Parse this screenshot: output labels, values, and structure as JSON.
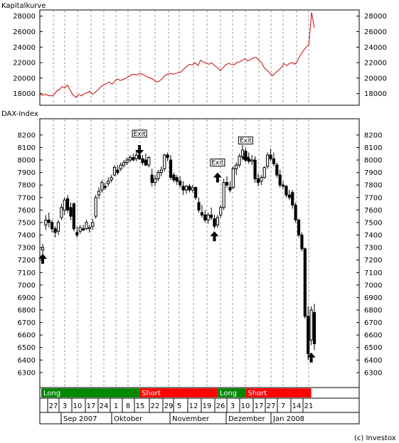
{
  "top_panel": {
    "title": "Kapitalkurve"
  },
  "bottom_panel": {
    "title": "DAX-Index"
  },
  "credit": "(c) Investox",
  "colors": {
    "equity": "#cc0000",
    "long": "#008800",
    "short": "#ff0000",
    "grid": "#999999",
    "candle": "#000000"
  },
  "chart_data": [
    {
      "type": "line",
      "title": "Kapitalkurve",
      "ylim": [
        16500,
        28800
      ],
      "y_ticks": [
        18000,
        20000,
        22000,
        24000,
        26000,
        28000
      ],
      "x": [
        0,
        1,
        2,
        3,
        4,
        5,
        6,
        7,
        8,
        9,
        10,
        11,
        12,
        13,
        14,
        15,
        16,
        17,
        18,
        19,
        20,
        21,
        22,
        23,
        24,
        25,
        26,
        27,
        28,
        29,
        30,
        31,
        32,
        33,
        34,
        35,
        36,
        37,
        38,
        39,
        40,
        41,
        42,
        43,
        44,
        45,
        46,
        47,
        48,
        49,
        50,
        51,
        52,
        53,
        54,
        55,
        56,
        57,
        58,
        59,
        60,
        61,
        62,
        63,
        64,
        65,
        66,
        67,
        68,
        69,
        70,
        71,
        72,
        73,
        74,
        75,
        76,
        77,
        78,
        79,
        80,
        81,
        82,
        83,
        84,
        85,
        86,
        87,
        88,
        89,
        90,
        91,
        92,
        93,
        94,
        95,
        96,
        97,
        98,
        99
      ],
      "series": [
        {
          "values": [
            17900,
            17800,
            17900,
            17750,
            17700,
            17800,
            18300,
            18500,
            18900,
            18800,
            19100,
            18400,
            17800,
            17500,
            17900,
            17700,
            18000,
            18100,
            18300,
            17900,
            18200,
            18500,
            18900,
            19100,
            19300,
            19500,
            19200,
            19600,
            19900,
            19700,
            19800,
            20000,
            20200,
            20400,
            20500,
            20400,
            20600,
            20500,
            20300,
            20100,
            20000,
            19800,
            19500,
            19600,
            19900,
            20300,
            20500,
            20600,
            20500,
            20600,
            20700,
            20800,
            21200,
            21500,
            21800,
            21700,
            22000,
            21600,
            22300,
            22100,
            21900,
            21800,
            22000,
            21600,
            21400,
            21000,
            21300,
            21700,
            21900,
            21800,
            21700,
            22000,
            22100,
            22300,
            22500,
            22200,
            22400,
            22600,
            22700,
            22300,
            22000,
            21300,
            21000,
            20600,
            20300,
            20700,
            21000,
            21300,
            21900,
            21600,
            21900,
            22000,
            21800,
            22300,
            23000,
            23500,
            24000,
            24300,
            28500,
            26500
          ]
        }
      ]
    },
    {
      "type": "candlestick",
      "title": "DAX-Index",
      "ylim": [
        6180,
        8330
      ],
      "y_ticks": [
        6300,
        6400,
        6500,
        6600,
        6700,
        6800,
        6900,
        7000,
        7100,
        7200,
        7300,
        7400,
        7500,
        7600,
        7700,
        7800,
        7900,
        8000,
        8100,
        8200
      ],
      "x_day_ticks": [
        "27",
        "3",
        "10",
        "17",
        "24",
        "1",
        "8",
        "15",
        "22",
        "29",
        "5",
        "12",
        "19",
        "26",
        "3",
        "10",
        "17",
        "27",
        "7",
        "14",
        "21"
      ],
      "x_month_labels": [
        "Sep 2007",
        "Oktober",
        "November",
        "Dezember",
        "Jan 2008"
      ],
      "candles": [
        {
          "o": 7280,
          "h": 7330,
          "l": 7240,
          "c": 7300
        },
        {
          "o": 7480,
          "h": 7560,
          "l": 7440,
          "c": 7520
        },
        {
          "o": 7520,
          "h": 7580,
          "l": 7460,
          "c": 7500
        },
        {
          "o": 7500,
          "h": 7520,
          "l": 7420,
          "c": 7450
        },
        {
          "o": 7450,
          "h": 7470,
          "l": 7380,
          "c": 7420
        },
        {
          "o": 7430,
          "h": 7520,
          "l": 7400,
          "c": 7500
        },
        {
          "o": 7540,
          "h": 7650,
          "l": 7520,
          "c": 7620
        },
        {
          "o": 7600,
          "h": 7700,
          "l": 7560,
          "c": 7680
        },
        {
          "o": 7690,
          "h": 7720,
          "l": 7580,
          "c": 7600
        },
        {
          "o": 7620,
          "h": 7660,
          "l": 7520,
          "c": 7550
        },
        {
          "o": 7650,
          "h": 7660,
          "l": 7430,
          "c": 7450
        },
        {
          "o": 7420,
          "h": 7470,
          "l": 7380,
          "c": 7400
        },
        {
          "o": 7430,
          "h": 7480,
          "l": 7410,
          "c": 7460
        },
        {
          "o": 7450,
          "h": 7480,
          "l": 7430,
          "c": 7440
        },
        {
          "o": 7450,
          "h": 7520,
          "l": 7440,
          "c": 7500
        },
        {
          "o": 7450,
          "h": 7480,
          "l": 7420,
          "c": 7460
        },
        {
          "o": 7470,
          "h": 7530,
          "l": 7440,
          "c": 7500
        },
        {
          "o": 7550,
          "h": 7720,
          "l": 7530,
          "c": 7700
        },
        {
          "o": 7720,
          "h": 7780,
          "l": 7690,
          "c": 7750
        },
        {
          "o": 7760,
          "h": 7840,
          "l": 7740,
          "c": 7820
        },
        {
          "o": 7790,
          "h": 7820,
          "l": 7760,
          "c": 7780
        },
        {
          "o": 7810,
          "h": 7860,
          "l": 7790,
          "c": 7830
        },
        {
          "o": 7840,
          "h": 7880,
          "l": 7820,
          "c": 7860
        },
        {
          "o": 7880,
          "h": 7960,
          "l": 7870,
          "c": 7940
        },
        {
          "o": 7920,
          "h": 7960,
          "l": 7880,
          "c": 7900
        },
        {
          "o": 7930,
          "h": 7980,
          "l": 7910,
          "c": 7960
        },
        {
          "o": 7960,
          "h": 8000,
          "l": 7940,
          "c": 7980
        },
        {
          "o": 7980,
          "h": 8020,
          "l": 7960,
          "c": 8000
        },
        {
          "o": 8000,
          "h": 8040,
          "l": 7980,
          "c": 8020
        },
        {
          "o": 8020,
          "h": 8050,
          "l": 7990,
          "c": 8000
        },
        {
          "o": 8010,
          "h": 8070,
          "l": 7990,
          "c": 8040
        },
        {
          "o": 8040,
          "h": 8070,
          "l": 8000,
          "c": 8010
        },
        {
          "o": 8010,
          "h": 8040,
          "l": 7960,
          "c": 7980
        },
        {
          "o": 8000,
          "h": 8050,
          "l": 7950,
          "c": 7960
        },
        {
          "o": 7960,
          "h": 8030,
          "l": 7940,
          "c": 8020
        },
        {
          "o": 7880,
          "h": 7930,
          "l": 7790,
          "c": 7820
        },
        {
          "o": 7820,
          "h": 7880,
          "l": 7790,
          "c": 7850
        },
        {
          "o": 7850,
          "h": 7920,
          "l": 7830,
          "c": 7900
        },
        {
          "o": 7900,
          "h": 7950,
          "l": 7870,
          "c": 7920
        },
        {
          "o": 7930,
          "h": 8050,
          "l": 7910,
          "c": 8040
        },
        {
          "o": 8040,
          "h": 8060,
          "l": 7990,
          "c": 8020
        },
        {
          "o": 8000,
          "h": 8040,
          "l": 7840,
          "c": 7860
        },
        {
          "o": 7880,
          "h": 7900,
          "l": 7820,
          "c": 7840
        },
        {
          "o": 7860,
          "h": 7880,
          "l": 7800,
          "c": 7830
        },
        {
          "o": 7830,
          "h": 7870,
          "l": 7780,
          "c": 7800
        },
        {
          "o": 7790,
          "h": 7830,
          "l": 7720,
          "c": 7760
        },
        {
          "o": 7760,
          "h": 7800,
          "l": 7730,
          "c": 7790
        },
        {
          "o": 7790,
          "h": 7810,
          "l": 7740,
          "c": 7760
        },
        {
          "o": 7760,
          "h": 7800,
          "l": 7740,
          "c": 7780
        },
        {
          "o": 7780,
          "h": 7790,
          "l": 7680,
          "c": 7700
        },
        {
          "o": 7660,
          "h": 7700,
          "l": 7580,
          "c": 7600
        },
        {
          "o": 7580,
          "h": 7640,
          "l": 7540,
          "c": 7560
        },
        {
          "o": 7560,
          "h": 7600,
          "l": 7500,
          "c": 7520
        },
        {
          "o": 7520,
          "h": 7580,
          "l": 7490,
          "c": 7560
        },
        {
          "o": 7560,
          "h": 7620,
          "l": 7520,
          "c": 7540
        },
        {
          "o": 7530,
          "h": 7560,
          "l": 7450,
          "c": 7470
        },
        {
          "o": 7480,
          "h": 7560,
          "l": 7460,
          "c": 7540
        },
        {
          "o": 7560,
          "h": 7640,
          "l": 7540,
          "c": 7620
        },
        {
          "o": 7620,
          "h": 7850,
          "l": 7600,
          "c": 7820
        },
        {
          "o": 7820,
          "h": 7870,
          "l": 7780,
          "c": 7800
        },
        {
          "o": 7780,
          "h": 7830,
          "l": 7740,
          "c": 7760
        },
        {
          "o": 7780,
          "h": 7950,
          "l": 7770,
          "c": 7930
        },
        {
          "o": 7930,
          "h": 7980,
          "l": 7880,
          "c": 7960
        },
        {
          "o": 7960,
          "h": 8050,
          "l": 7940,
          "c": 8030
        },
        {
          "o": 8030,
          "h": 8120,
          "l": 8000,
          "c": 8080
        },
        {
          "o": 8070,
          "h": 8100,
          "l": 7990,
          "c": 8020
        },
        {
          "o": 8010,
          "h": 8060,
          "l": 7970,
          "c": 7990
        },
        {
          "o": 7990,
          "h": 8040,
          "l": 7960,
          "c": 8000
        },
        {
          "o": 8000,
          "h": 8030,
          "l": 7820,
          "c": 7850
        },
        {
          "o": 7850,
          "h": 7890,
          "l": 7790,
          "c": 7820
        },
        {
          "o": 7830,
          "h": 7880,
          "l": 7800,
          "c": 7860
        },
        {
          "o": 7860,
          "h": 7950,
          "l": 7850,
          "c": 7940
        },
        {
          "o": 7950,
          "h": 8060,
          "l": 7930,
          "c": 8040
        },
        {
          "o": 8040,
          "h": 8090,
          "l": 7990,
          "c": 8010
        },
        {
          "o": 8010,
          "h": 8060,
          "l": 7950,
          "c": 7970
        },
        {
          "o": 7960,
          "h": 7980,
          "l": 7860,
          "c": 7880
        },
        {
          "o": 7880,
          "h": 7920,
          "l": 7780,
          "c": 7800
        },
        {
          "o": 7800,
          "h": 7830,
          "l": 7770,
          "c": 7790
        },
        {
          "o": 7790,
          "h": 7800,
          "l": 7700,
          "c": 7720
        },
        {
          "o": 7720,
          "h": 7760,
          "l": 7680,
          "c": 7700
        },
        {
          "o": 7740,
          "h": 7760,
          "l": 7610,
          "c": 7640
        },
        {
          "o": 7640,
          "h": 7660,
          "l": 7500,
          "c": 7520
        },
        {
          "o": 7520,
          "h": 7530,
          "l": 7380,
          "c": 7400
        },
        {
          "o": 7400,
          "h": 7420,
          "l": 7270,
          "c": 7290
        },
        {
          "o": 7290,
          "h": 7300,
          "l": 6730,
          "c": 6750
        },
        {
          "o": 6750,
          "h": 6830,
          "l": 6400,
          "c": 6450
        },
        {
          "o": 6560,
          "h": 6830,
          "l": 6520,
          "c": 6800
        },
        {
          "o": 6780,
          "h": 6850,
          "l": 6480,
          "c": 6530
        }
      ],
      "markers": [
        {
          "label": "",
          "dir": "up",
          "at": 0,
          "value": 7210
        },
        {
          "label": "Exit",
          "dir": "down",
          "at": 31,
          "value": 8080
        },
        {
          "label": "",
          "dir": "up",
          "at": 55,
          "value": 7390
        },
        {
          "label": "Exit",
          "dir": "up",
          "at": 56,
          "value": 7860
        },
        {
          "label": "Exit",
          "dir": "down",
          "at": 65,
          "value": 8025
        },
        {
          "label": "",
          "dir": "up",
          "at": 86,
          "value": 6420
        }
      ]
    }
  ],
  "position_bands": [
    {
      "label": "Long",
      "side": "long",
      "from": 0,
      "to": 31
    },
    {
      "label": "Short",
      "side": "short",
      "from": 31,
      "to": 56
    },
    {
      "label": "Long",
      "side": "long",
      "from": 56,
      "to": 65
    },
    {
      "label": "Short",
      "side": "short",
      "from": 65,
      "to": 86
    }
  ]
}
